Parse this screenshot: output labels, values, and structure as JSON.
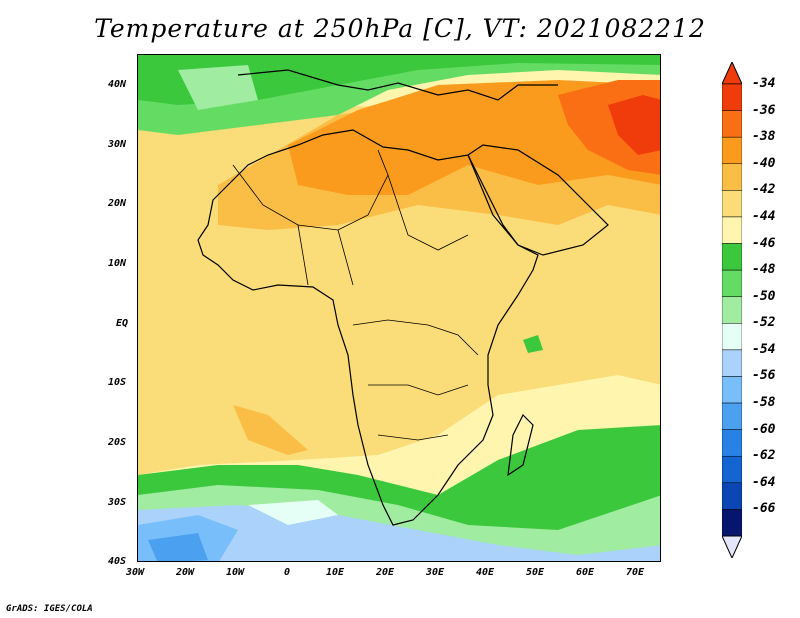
{
  "title": "Temperature at 250hPa [C], VT: 2021082212",
  "credit": "GrADS: IGES/COLA",
  "lat_labels": [
    "40N",
    "30N",
    "20N",
    "10N",
    "EQ",
    "10S",
    "20S",
    "30S",
    "40S"
  ],
  "lon_labels": [
    "30W",
    "20W",
    "10W",
    "0",
    "10E",
    "20E",
    "30E",
    "40E",
    "50E",
    "60E",
    "70E"
  ],
  "colorbar": {
    "labels": [
      "-34",
      "-36",
      "-38",
      "-40",
      "-42",
      "-44",
      "-46",
      "-48",
      "-50",
      "-52",
      "-54",
      "-56",
      "-58",
      "-60",
      "-62",
      "-64",
      "-66"
    ],
    "colors": [
      "#f03c0a",
      "#fa6e14",
      "#fa9b1e",
      "#fabe46",
      "#fadc78",
      "#fff5ae",
      "#3cc83c",
      "#64dc64",
      "#a0eca0",
      "#e6fff6",
      "#aad2fa",
      "#78befa",
      "#4ba0f0",
      "#2882e6",
      "#1464d2",
      "#0a46b4",
      "#06166e"
    ],
    "overflow_top": "#f03c0a",
    "overflow_bottom": "#e6e6fa"
  }
}
